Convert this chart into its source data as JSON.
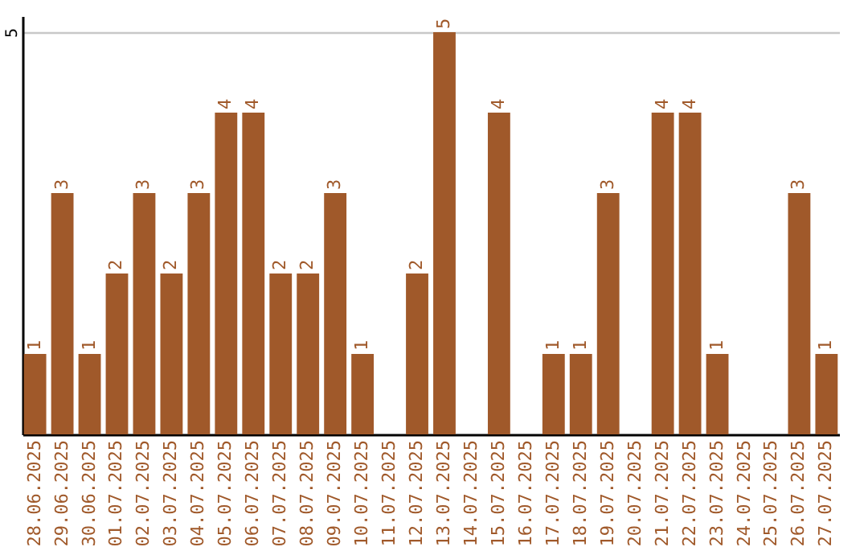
{
  "chart_data": {
    "type": "bar",
    "categories": [
      "28.06.2025",
      "29.06.2025",
      "30.06.2025",
      "01.07.2025",
      "02.07.2025",
      "03.07.2025",
      "04.07.2025",
      "05.07.2025",
      "06.07.2025",
      "07.07.2025",
      "08.07.2025",
      "09.07.2025",
      "10.07.2025",
      "11.07.2025",
      "12.07.2025",
      "13.07.2025",
      "14.07.2025",
      "15.07.2025",
      "16.07.2025",
      "17.07.2025",
      "18.07.2025",
      "19.07.2025",
      "20.07.2025",
      "21.07.2025",
      "22.07.2025",
      "23.07.2025",
      "24.07.2025",
      "25.07.2025",
      "26.07.2025",
      "27.07.2025"
    ],
    "values": [
      1,
      3,
      1,
      2,
      3,
      2,
      3,
      4,
      4,
      2,
      2,
      3,
      1,
      null,
      2,
      5,
      null,
      4,
      null,
      1,
      1,
      3,
      null,
      4,
      4,
      1,
      null,
      null,
      3,
      1
    ],
    "color": "#a0592a",
    "ylim": [
      0,
      5.2
    ],
    "yticks": [
      5
    ],
    "grid": "y",
    "data_labels": true
  }
}
